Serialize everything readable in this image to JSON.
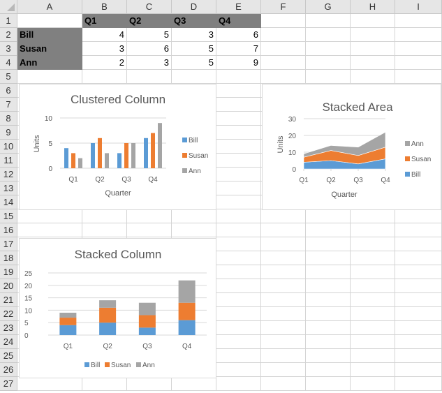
{
  "spreadsheet": {
    "columns": [
      "A",
      "B",
      "C",
      "D",
      "E",
      "F",
      "G",
      "H",
      "I"
    ],
    "rows": [
      "1",
      "2",
      "3",
      "4",
      "5",
      "6",
      "7",
      "8",
      "9",
      "10",
      "11",
      "12",
      "13",
      "14",
      "15",
      "16",
      "17",
      "18",
      "19",
      "20",
      "21",
      "22",
      "23",
      "24",
      "25",
      "26",
      "27"
    ],
    "header_row": [
      "",
      "Q1",
      "Q2",
      "Q3",
      "Q4"
    ],
    "data_rows": [
      {
        "name": "Bill",
        "values": [
          "4",
          "5",
          "3",
          "6"
        ]
      },
      {
        "name": "Susan",
        "values": [
          "3",
          "6",
          "5",
          "7"
        ]
      },
      {
        "name": "Ann",
        "values": [
          "2",
          "3",
          "5",
          "9"
        ]
      }
    ]
  },
  "colors": {
    "Bill": "#5B9BD5",
    "Susan": "#ED7D31",
    "Ann": "#A5A5A5",
    "header_fill": "#808080"
  },
  "chart_data": [
    {
      "type": "bar",
      "subtype": "clustered",
      "title": "Clustered Column",
      "xlabel": "Quarter",
      "ylabel": "Units",
      "categories": [
        "Q1",
        "Q2",
        "Q3",
        "Q4"
      ],
      "series": [
        {
          "name": "Bill",
          "values": [
            4,
            5,
            3,
            6
          ]
        },
        {
          "name": "Susan",
          "values": [
            3,
            6,
            5,
            7
          ]
        },
        {
          "name": "Ann",
          "values": [
            2,
            3,
            5,
            9
          ]
        }
      ],
      "yticks": [
        "0",
        "5",
        "10"
      ],
      "ylim": [
        0,
        10
      ],
      "grid": true,
      "legend_position": "right",
      "legend": [
        "Bill",
        "Susan",
        "Ann"
      ]
    },
    {
      "type": "area",
      "subtype": "stacked",
      "title": "Stacked Area",
      "xlabel": "Quarter",
      "ylabel": "Units",
      "categories": [
        "Q1",
        "Q2",
        "Q3",
        "Q4"
      ],
      "series": [
        {
          "name": "Bill",
          "values": [
            4,
            5,
            3,
            6
          ]
        },
        {
          "name": "Susan",
          "values": [
            3,
            6,
            5,
            7
          ]
        },
        {
          "name": "Ann",
          "values": [
            2,
            3,
            5,
            9
          ]
        }
      ],
      "yticks": [
        "0",
        "10",
        "20",
        "30"
      ],
      "ylim": [
        0,
        30
      ],
      "grid": true,
      "legend_position": "right",
      "legend": [
        "Ann",
        "Susan",
        "Bill"
      ]
    },
    {
      "type": "bar",
      "subtype": "stacked",
      "title": "Stacked Column",
      "xlabel": "",
      "ylabel": "",
      "categories": [
        "Q1",
        "Q2",
        "Q3",
        "Q4"
      ],
      "series": [
        {
          "name": "Bill",
          "values": [
            4,
            5,
            3,
            6
          ]
        },
        {
          "name": "Susan",
          "values": [
            3,
            6,
            5,
            7
          ]
        },
        {
          "name": "Ann",
          "values": [
            2,
            3,
            5,
            9
          ]
        }
      ],
      "yticks": [
        "0",
        "5",
        "10",
        "15",
        "20",
        "25"
      ],
      "ylim": [
        0,
        25
      ],
      "grid": true,
      "legend_position": "bottom",
      "legend": [
        "Bill",
        "Susan",
        "Ann"
      ]
    }
  ]
}
